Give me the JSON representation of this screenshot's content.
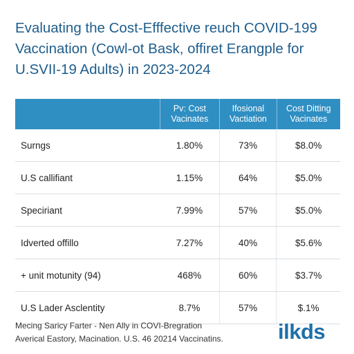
{
  "header": {
    "title_lines": [
      "Evaluating the Cost-Efffective reuch COVID-199",
      "Vaccination (Cowl-ot Bask, offiret Erangple for",
      "U.SVII-19 Adults) in 2023-2024"
    ]
  },
  "table": {
    "columns": [
      null,
      [
        "Pv: Cost",
        "Vacinates"
      ],
      [
        "Ifosional",
        "Vactiation"
      ],
      [
        "Cost Ditting",
        "Vacinates"
      ]
    ],
    "rows": [
      [
        "Surngs",
        "1.80%",
        "73%",
        "$8.0%"
      ],
      [
        "U.S callifiant",
        "1.15%",
        "64%",
        "$5.0%"
      ],
      [
        "Speciriant",
        "7.99%",
        "57%",
        "$5.0%"
      ],
      [
        "Idverted offillo",
        "7.27%",
        "40%",
        "$5.6%"
      ],
      [
        "+ unit motunity (94)",
        "468%",
        "60%",
        "$3.7%"
      ],
      [
        "U.S Lader Asclentity",
        "8.7%",
        "57%",
        "$.1%"
      ]
    ]
  },
  "footer": {
    "lines": [
      "Mecing Saricy Farter - Nen Ally in COVI-Bregration",
      "Averical Eastory, Macination. U.S. 46 20214 Vaccinatins."
    ],
    "logo": "ilkds"
  }
}
